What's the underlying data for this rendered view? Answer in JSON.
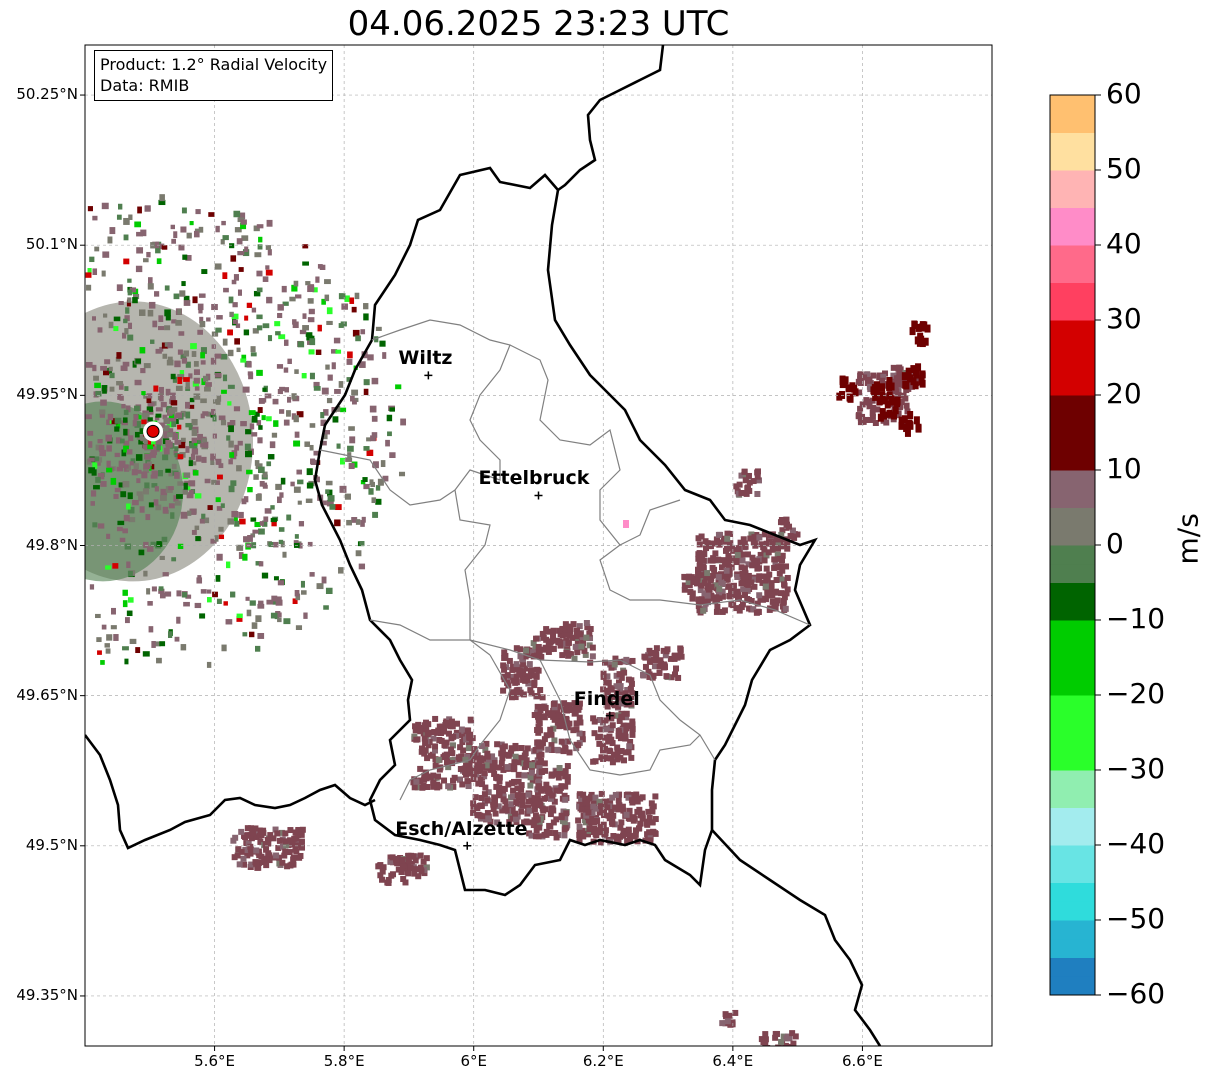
{
  "title": "04.06.2025 23:23 UTC",
  "info_box": {
    "product": "Product: 1.2° Radial Velocity",
    "data": "Data: RMIB"
  },
  "axes": {
    "lat_ticks": [
      "50.25°N",
      "50.1°N",
      "49.95°N",
      "49.8°N",
      "49.65°N",
      "49.5°N",
      "49.35°N"
    ],
    "lon_ticks": [
      "5.6°E",
      "5.8°E",
      "6°E",
      "6.2°E",
      "6.4°E",
      "6.6°E"
    ],
    "lat_range": [
      49.3,
      50.3
    ],
    "lon_range": [
      5.4,
      6.8
    ],
    "gridlines": true
  },
  "colorbar": {
    "unit": "m/s",
    "range": [
      -60,
      60
    ],
    "ticks": [
      "60",
      "50",
      "40",
      "30",
      "20",
      "10",
      "0",
      "−10",
      "−20",
      "−30",
      "−40",
      "−50",
      "−60"
    ],
    "colors": {
      "-60": "#1f7fc0",
      "-55": "#27b4d2",
      "-50": "#2fdcdc",
      "-45": "#68e4e4",
      "-40": "#a3ecee",
      "-35": "#90eeb0",
      "-30": "#2aff2a",
      "-20": "#00cc00",
      "-10": "#006400",
      "-5": "#4f7f4f",
      "0": "#7a7a6e",
      "5": "#876470",
      "8": "#7f4450",
      "10": "#6e0000",
      "20": "#d30000",
      "30": "#ff4060",
      "35": "#ff6a8a",
      "40": "#ff8cc8",
      "45": "#ffb4b4",
      "50": "#ffe0a0",
      "55": "#ffc070",
      "60": "#ffa050"
    }
  },
  "radar_site": {
    "lon": 5.505,
    "lat": 49.914,
    "color": "#e00000"
  },
  "cities": [
    {
      "name": "Wiltz",
      "lon": 5.93,
      "lat": 49.97
    },
    {
      "name": "Ettelbruck",
      "lon": 6.1,
      "lat": 49.85
    },
    {
      "name": "Findel",
      "lon": 6.21,
      "lat": 49.63
    },
    {
      "name": "Esch/Alzette",
      "lon": 5.99,
      "lat": 49.5
    }
  ]
}
